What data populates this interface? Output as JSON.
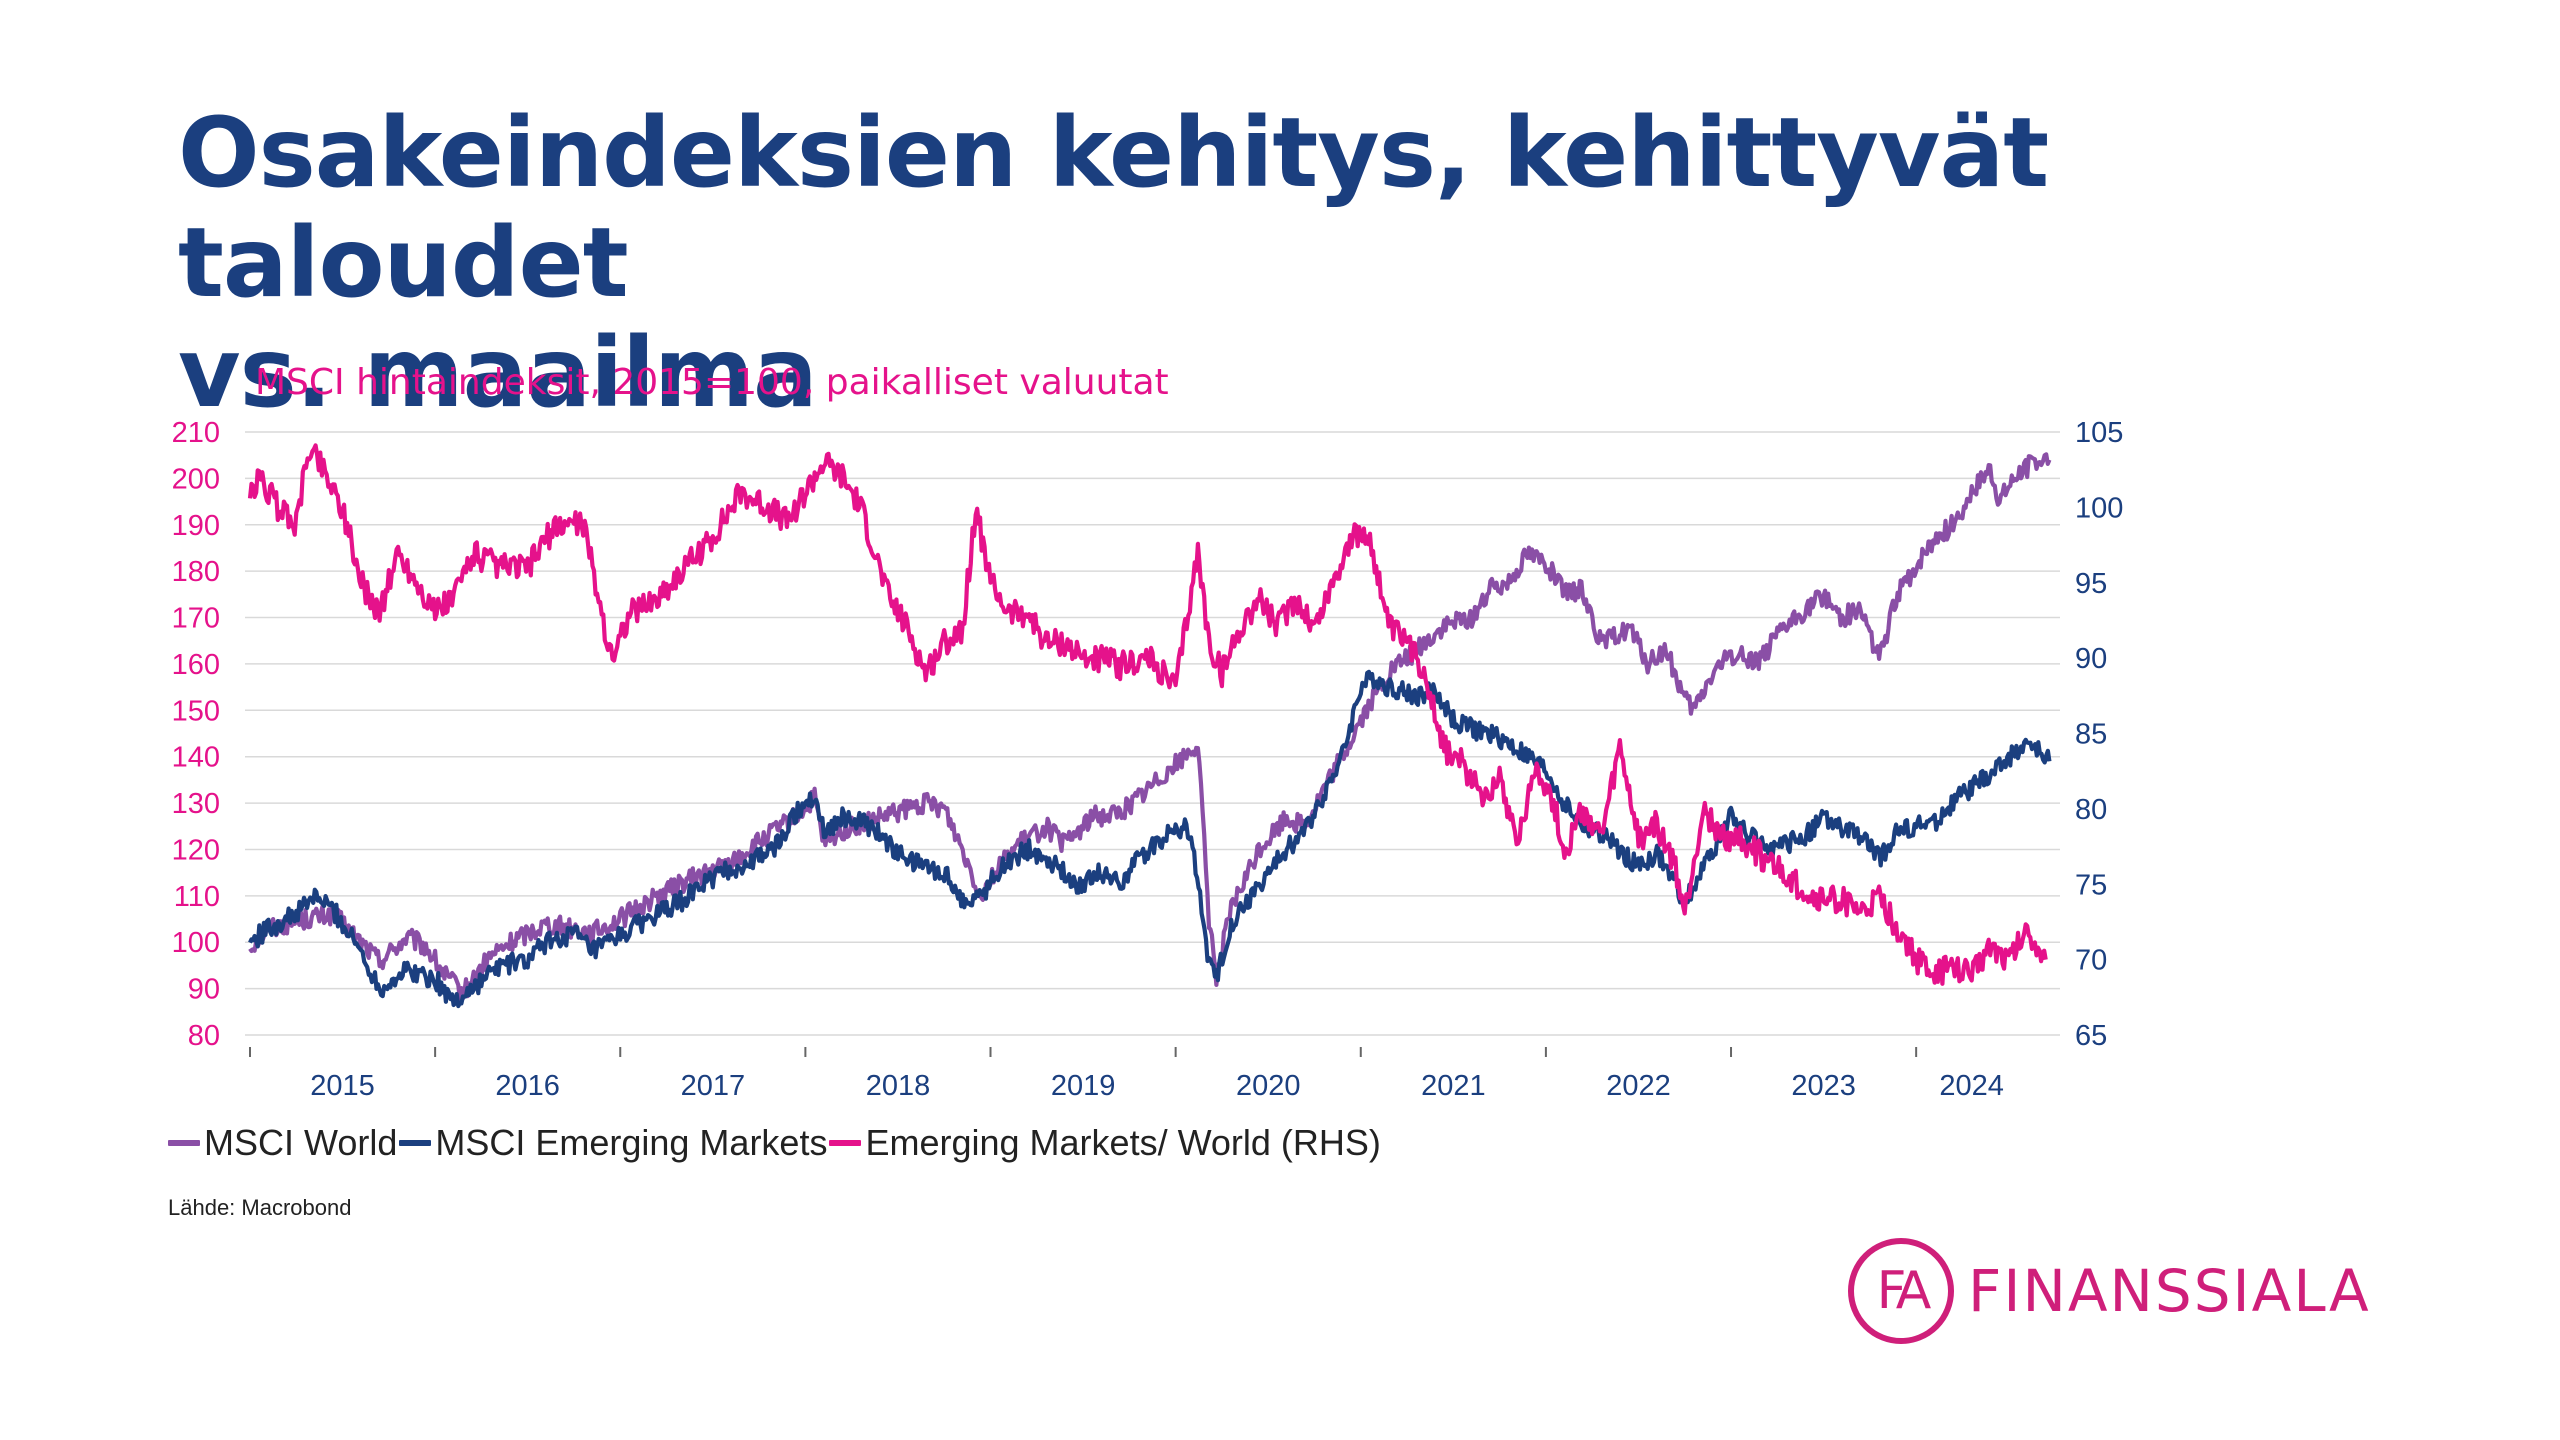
{
  "slide": {
    "title_line1": "Osakeindeksien kehitys, kehittyvät taloudet",
    "title_line2": "vs. maailma",
    "source": "Lähde: Macrobond"
  },
  "logo": {
    "mark": "FA",
    "text": "FINANSSIALA",
    "color": "#cf1f7a"
  },
  "chart_data": {
    "type": "line",
    "title": "MSCI hintaindeksit, 2015=100, paikalliset valuutat",
    "y_left": {
      "ticks": [
        80,
        90,
        100,
        110,
        120,
        130,
        140,
        150,
        160,
        170,
        180,
        190,
        200,
        210
      ],
      "range": [
        80,
        210
      ],
      "color": "#e5128b"
    },
    "y_right": {
      "ticks": [
        65,
        70,
        75,
        80,
        85,
        90,
        95,
        100,
        105
      ],
      "range": [
        65,
        105
      ],
      "color": "#1b3f7f",
      "label": "RHS"
    },
    "x": {
      "range": [
        2015.0,
        2024.75
      ],
      "ticks": [
        "2015",
        "2016",
        "2017",
        "2018",
        "2019",
        "2020",
        "2021",
        "2022",
        "2023",
        "2024"
      ]
    },
    "grid": true,
    "legend_position": "bottom-left",
    "series": [
      {
        "name": "MSCI World",
        "axis": "left",
        "color": "#8a4fa6",
        "points": [
          [
            2015.0,
            99
          ],
          [
            2015.1,
            103
          ],
          [
            2015.3,
            105
          ],
          [
            2015.45,
            106
          ],
          [
            2015.6,
            100
          ],
          [
            2015.7,
            96
          ],
          [
            2015.85,
            101
          ],
          [
            2015.95,
            99
          ],
          [
            2016.05,
            93
          ],
          [
            2016.15,
            89
          ],
          [
            2016.3,
            97
          ],
          [
            2016.45,
            101
          ],
          [
            2016.6,
            104
          ],
          [
            2016.75,
            103
          ],
          [
            2016.85,
            102
          ],
          [
            2017.0,
            105
          ],
          [
            2017.2,
            110
          ],
          [
            2017.4,
            114
          ],
          [
            2017.6,
            117
          ],
          [
            2017.8,
            123
          ],
          [
            2017.95,
            127
          ],
          [
            2018.05,
            131
          ],
          [
            2018.1,
            121
          ],
          [
            2018.2,
            124
          ],
          [
            2018.35,
            126
          ],
          [
            2018.5,
            128
          ],
          [
            2018.65,
            130
          ],
          [
            2018.75,
            129
          ],
          [
            2018.85,
            120
          ],
          [
            2018.95,
            110
          ],
          [
            2019.0,
            114
          ],
          [
            2019.15,
            121
          ],
          [
            2019.3,
            125
          ],
          [
            2019.4,
            121
          ],
          [
            2019.55,
            127
          ],
          [
            2019.7,
            128
          ],
          [
            2019.85,
            133
          ],
          [
            2019.95,
            137
          ],
          [
            2020.05,
            140
          ],
          [
            2020.12,
            143
          ],
          [
            2020.18,
            105
          ],
          [
            2020.22,
            93
          ],
          [
            2020.3,
            107
          ],
          [
            2020.45,
            120
          ],
          [
            2020.6,
            127
          ],
          [
            2020.7,
            125
          ],
          [
            2020.8,
            133
          ],
          [
            2020.9,
            140
          ],
          [
            2021.0,
            148
          ],
          [
            2021.15,
            158
          ],
          [
            2021.3,
            163
          ],
          [
            2021.45,
            168
          ],
          [
            2021.6,
            170
          ],
          [
            2021.7,
            176
          ],
          [
            2021.8,
            178
          ],
          [
            2021.9,
            184
          ],
          [
            2022.0,
            182
          ],
          [
            2022.1,
            175
          ],
          [
            2022.2,
            176
          ],
          [
            2022.3,
            164
          ],
          [
            2022.45,
            168
          ],
          [
            2022.55,
            160
          ],
          [
            2022.65,
            163
          ],
          [
            2022.75,
            152
          ],
          [
            2022.8,
            150
          ],
          [
            2022.9,
            158
          ],
          [
            2023.0,
            162
          ],
          [
            2023.15,
            161
          ],
          [
            2023.3,
            168
          ],
          [
            2023.5,
            175
          ],
          [
            2023.6,
            170
          ],
          [
            2023.7,
            172
          ],
          [
            2023.8,
            161
          ],
          [
            2023.9,
            175
          ],
          [
            2024.0,
            181
          ],
          [
            2024.1,
            187
          ],
          [
            2024.2,
            190
          ],
          [
            2024.3,
            197
          ],
          [
            2024.4,
            202
          ],
          [
            2024.45,
            195
          ],
          [
            2024.55,
            201
          ],
          [
            2024.65,
            204
          ],
          [
            2024.72,
            204
          ]
        ]
      },
      {
        "name": "MSCI Emerging Markets",
        "axis": "left",
        "color": "#1b3f7f",
        "points": [
          [
            2015.0,
            100
          ],
          [
            2015.1,
            103
          ],
          [
            2015.25,
            106
          ],
          [
            2015.35,
            110
          ],
          [
            2015.45,
            107
          ],
          [
            2015.6,
            98
          ],
          [
            2015.7,
            90
          ],
          [
            2015.85,
            94
          ],
          [
            2016.0,
            92
          ],
          [
            2016.1,
            87
          ],
          [
            2016.2,
            90
          ],
          [
            2016.35,
            95
          ],
          [
            2016.5,
            96
          ],
          [
            2016.6,
            100
          ],
          [
            2016.75,
            102
          ],
          [
            2016.85,
            98
          ],
          [
            2016.95,
            100
          ],
          [
            2017.1,
            104
          ],
          [
            2017.3,
            108
          ],
          [
            2017.5,
            114
          ],
          [
            2017.7,
            117
          ],
          [
            2017.85,
            121
          ],
          [
            2017.95,
            128
          ],
          [
            2018.05,
            132
          ],
          [
            2018.1,
            124
          ],
          [
            2018.2,
            127
          ],
          [
            2018.35,
            125
          ],
          [
            2018.5,
            119
          ],
          [
            2018.6,
            117
          ],
          [
            2018.75,
            115
          ],
          [
            2018.85,
            109
          ],
          [
            2018.95,
            110
          ],
          [
            2019.05,
            116
          ],
          [
            2019.2,
            120
          ],
          [
            2019.35,
            117
          ],
          [
            2019.45,
            112
          ],
          [
            2019.6,
            115
          ],
          [
            2019.7,
            113
          ],
          [
            2019.85,
            120
          ],
          [
            2019.95,
            123
          ],
          [
            2020.05,
            125
          ],
          [
            2020.1,
            119
          ],
          [
            2020.18,
            95
          ],
          [
            2020.22,
            92
          ],
          [
            2020.3,
            104
          ],
          [
            2020.45,
            112
          ],
          [
            2020.6,
            120
          ],
          [
            2020.7,
            124
          ],
          [
            2020.8,
            132
          ],
          [
            2020.9,
            140
          ],
          [
            2021.0,
            155
          ],
          [
            2021.07,
            157
          ],
          [
            2021.15,
            155
          ],
          [
            2021.3,
            153
          ],
          [
            2021.4,
            154
          ],
          [
            2021.5,
            148
          ],
          [
            2021.6,
            146
          ],
          [
            2021.75,
            144
          ],
          [
            2021.9,
            140
          ],
          [
            2022.0,
            137
          ],
          [
            2022.1,
            130
          ],
          [
            2022.2,
            125
          ],
          [
            2022.35,
            122
          ],
          [
            2022.5,
            116
          ],
          [
            2022.6,
            119
          ],
          [
            2022.75,
            109
          ],
          [
            2022.85,
            116
          ],
          [
            2023.0,
            127
          ],
          [
            2023.1,
            123
          ],
          [
            2023.25,
            120
          ],
          [
            2023.4,
            123
          ],
          [
            2023.5,
            127
          ],
          [
            2023.6,
            124
          ],
          [
            2023.7,
            123
          ],
          [
            2023.8,
            118
          ],
          [
            2023.9,
            124
          ],
          [
            2024.0,
            125
          ],
          [
            2024.1,
            126
          ],
          [
            2024.25,
            132
          ],
          [
            2024.4,
            136
          ],
          [
            2024.5,
            140
          ],
          [
            2024.6,
            143
          ],
          [
            2024.72,
            139
          ]
        ]
      },
      {
        "name": "Emerging Markets/ World (RHS)",
        "axis": "right",
        "color": "#e5128b",
        "points": [
          [
            2015.0,
            100.5
          ],
          [
            2015.05,
            102
          ],
          [
            2015.15,
            100
          ],
          [
            2015.25,
            99
          ],
          [
            2015.32,
            104
          ],
          [
            2015.38,
            103
          ],
          [
            2015.5,
            100
          ],
          [
            2015.6,
            95
          ],
          [
            2015.7,
            93
          ],
          [
            2015.8,
            97
          ],
          [
            2015.9,
            95
          ],
          [
            2016.0,
            93
          ],
          [
            2016.1,
            94
          ],
          [
            2016.2,
            97
          ],
          [
            2016.35,
            96
          ],
          [
            2016.5,
            96
          ],
          [
            2016.6,
            98
          ],
          [
            2016.7,
            99
          ],
          [
            2016.8,
            99
          ],
          [
            2016.9,
            93
          ],
          [
            2016.95,
            90
          ],
          [
            2017.05,
            93
          ],
          [
            2017.2,
            94
          ],
          [
            2017.35,
            96
          ],
          [
            2017.5,
            98
          ],
          [
            2017.65,
            101
          ],
          [
            2017.8,
            100
          ],
          [
            2017.9,
            99
          ],
          [
            2018.0,
            101
          ],
          [
            2018.1,
            103
          ],
          [
            2018.2,
            102
          ],
          [
            2018.3,
            100
          ],
          [
            2018.45,
            94
          ],
          [
            2018.55,
            92
          ],
          [
            2018.65,
            89
          ],
          [
            2018.75,
            91
          ],
          [
            2018.85,
            92
          ],
          [
            2018.92,
            100
          ],
          [
            2019.0,
            95
          ],
          [
            2019.1,
            93
          ],
          [
            2019.2,
            93
          ],
          [
            2019.3,
            91
          ],
          [
            2019.4,
            91
          ],
          [
            2019.5,
            90
          ],
          [
            2019.6,
            90
          ],
          [
            2019.7,
            89.5
          ],
          [
            2019.85,
            90
          ],
          [
            2020.0,
            88
          ],
          [
            2020.12,
            97
          ],
          [
            2020.18,
            91
          ],
          [
            2020.25,
            89
          ],
          [
            2020.35,
            92
          ],
          [
            2020.45,
            94
          ],
          [
            2020.55,
            92
          ],
          [
            2020.65,
            94
          ],
          [
            2020.75,
            92
          ],
          [
            2020.85,
            95
          ],
          [
            2020.95,
            98
          ],
          [
            2021.05,
            98
          ],
          [
            2021.15,
            92
          ],
          [
            2021.25,
            91
          ],
          [
            2021.35,
            89
          ],
          [
            2021.45,
            84
          ],
          [
            2021.55,
            83
          ],
          [
            2021.65,
            81
          ],
          [
            2021.75,
            82
          ],
          [
            2021.85,
            78
          ],
          [
            2021.95,
            83
          ],
          [
            2022.05,
            80
          ],
          [
            2022.1,
            77
          ],
          [
            2022.2,
            80
          ],
          [
            2022.3,
            78
          ],
          [
            2022.4,
            84
          ],
          [
            2022.5,
            78
          ],
          [
            2022.6,
            79
          ],
          [
            2022.7,
            76
          ],
          [
            2022.75,
            73
          ],
          [
            2022.85,
            80
          ],
          [
            2022.95,
            78
          ],
          [
            2023.05,
            78
          ],
          [
            2023.15,
            77
          ],
          [
            2023.25,
            76
          ],
          [
            2023.35,
            75
          ],
          [
            2023.45,
            74
          ],
          [
            2023.6,
            74
          ],
          [
            2023.7,
            73
          ],
          [
            2023.8,
            74
          ],
          [
            2023.9,
            72
          ],
          [
            2024.0,
            70
          ],
          [
            2024.1,
            69
          ],
          [
            2024.2,
            69.5
          ],
          [
            2024.3,
            69
          ],
          [
            2024.4,
            71
          ],
          [
            2024.5,
            70
          ],
          [
            2024.6,
            72
          ],
          [
            2024.7,
            70
          ]
        ]
      }
    ]
  }
}
